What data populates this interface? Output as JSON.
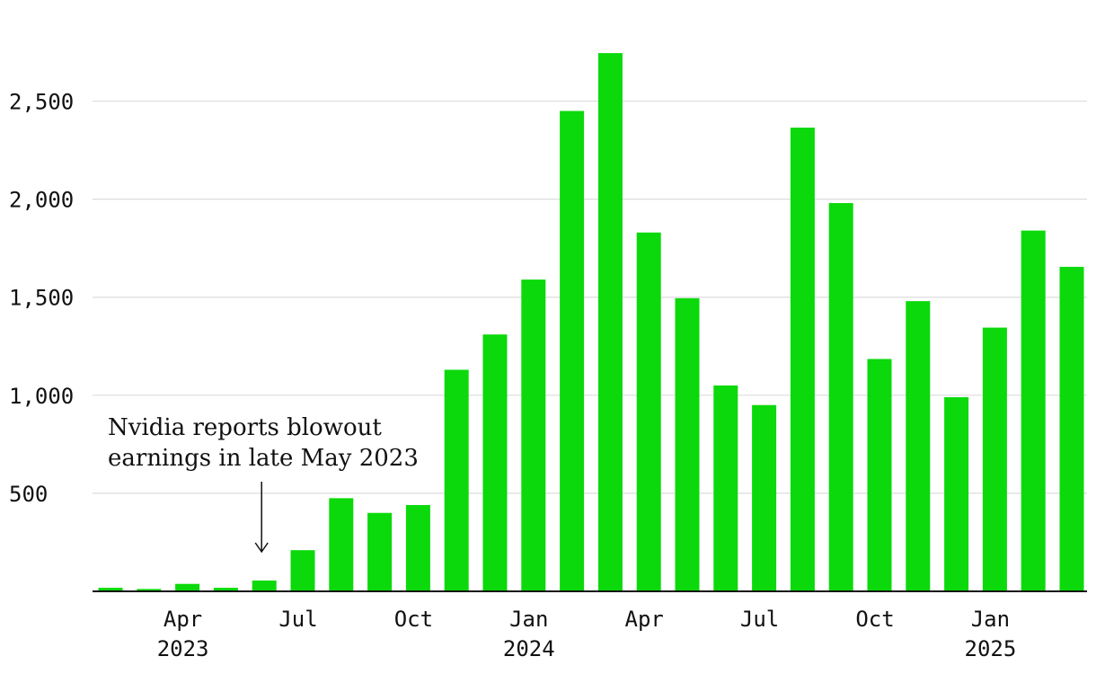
{
  "chart_data": {
    "type": "bar",
    "title": "",
    "xlabel": "",
    "ylabel": "",
    "categories": [
      "2023-02",
      "2023-03",
      "2023-04",
      "2023-05",
      "2023-06",
      "2023-07",
      "2023-08",
      "2023-09",
      "2023-10",
      "2023-11",
      "2023-12",
      "2024-01",
      "2024-02",
      "2024-03",
      "2024-04",
      "2024-05",
      "2024-06",
      "2024-07",
      "2024-08",
      "2024-09",
      "2024-10",
      "2024-11",
      "2024-12",
      "2025-01",
      "2025-02",
      "2025-03"
    ],
    "values": [
      18,
      12,
      38,
      18,
      55,
      210,
      475,
      400,
      440,
      1130,
      1310,
      1590,
      2450,
      2745,
      1830,
      1495,
      1050,
      950,
      2365,
      1980,
      1185,
      1480,
      990,
      1345,
      1840,
      1655
    ],
    "ylim": [
      0,
      2750
    ],
    "grid": true,
    "y_ticks": [
      {
        "value": 500,
        "label": "500"
      },
      {
        "value": 1000,
        "label": "1,000"
      },
      {
        "value": 1500,
        "label": "1,500"
      },
      {
        "value": 2000,
        "label": "2,000"
      },
      {
        "value": 2500,
        "label": "2,500"
      }
    ],
    "x_ticks": [
      {
        "category": "2023-04",
        "label": "Apr",
        "year": "2023"
      },
      {
        "category": "2023-07",
        "label": "Jul",
        "year": ""
      },
      {
        "category": "2023-10",
        "label": "Oct",
        "year": ""
      },
      {
        "category": "2024-01",
        "label": "Jan",
        "year": "2024"
      },
      {
        "category": "2024-04",
        "label": "Apr",
        "year": ""
      },
      {
        "category": "2024-07",
        "label": "Jul",
        "year": ""
      },
      {
        "category": "2024-10",
        "label": "Oct",
        "year": ""
      },
      {
        "category": "2025-01",
        "label": "Jan",
        "year": "2025"
      }
    ],
    "annotation": {
      "lines": [
        "Nvidia reports blowout",
        "earnings in late May 2023"
      ],
      "category": "2023-06"
    },
    "colors": {
      "bar": "#0bd90b",
      "grid": "#dcdcdc",
      "axis": "#111111",
      "text": "#111111"
    }
  }
}
